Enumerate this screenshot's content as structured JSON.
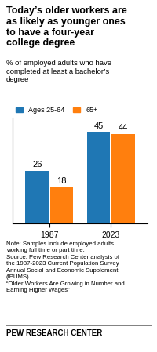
{
  "chart_data": {
    "type": "bar",
    "title": "Today’s older workers are\nas likely as younger ones\nto have a four-year\ncollege degree",
    "subtitle": "% of employed adults who have\ncompleted at least a bachelor’s\ndegree",
    "categories": [
      "1987",
      "2023"
    ],
    "series": [
      {
        "name": "Ages 25-64",
        "values": [
          26,
          45
        ]
      },
      {
        "name": "65+",
        "values": [
          18,
          44
        ]
      }
    ],
    "ylim": [
      0,
      52
    ],
    "yticks": [],
    "data_labels": true,
    "tick_labels": "x",
    "legend": "upper left",
    "annotations": [
      "Note: Samples include employed adults\nworking full time or part time.\nSource: Pew Research Center analysis of\nthe 1987-2023 Current Population Survey\nAnnual Social and Economic Supplement\n(IPUMS).\n“Older Workers Are Growing in Number and\nEarning Higher Wages”",
      "PEW RESEARCH CENTER"
    ]
  }
}
